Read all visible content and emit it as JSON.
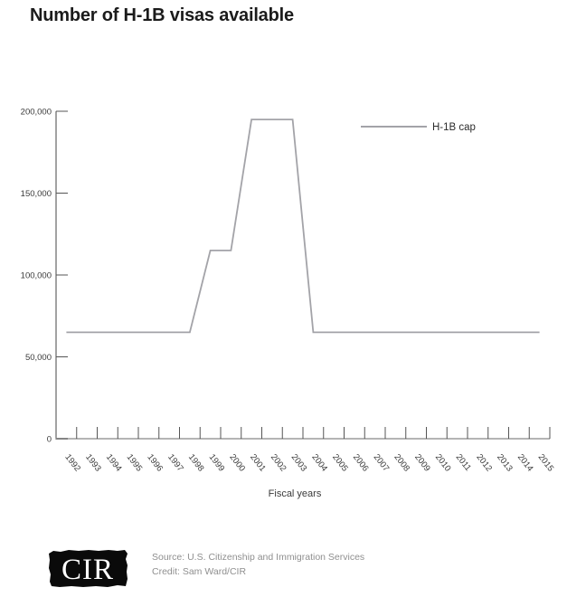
{
  "title": "Number of H-1B visas available",
  "chart_data": {
    "type": "line",
    "title": "Number of H-1B visas available",
    "xlabel": "Fiscal years",
    "ylabel": "",
    "x_categories": [
      "1992",
      "1993",
      "1994",
      "1995",
      "1996",
      "1997",
      "1998",
      "1999",
      "2000",
      "2001",
      "2002",
      "2003",
      "2004",
      "2005",
      "2006",
      "2007",
      "2008",
      "2009",
      "2010",
      "2011",
      "2012",
      "2013",
      "2014",
      "2015"
    ],
    "series": [
      {
        "name": "H-1B cap",
        "color": "#a3a3a8",
        "values": [
          65000,
          65000,
          65000,
          65000,
          65000,
          65000,
          65000,
          115000,
          115000,
          195000,
          195000,
          195000,
          65000,
          65000,
          65000,
          65000,
          65000,
          65000,
          65000,
          65000,
          65000,
          65000,
          65000,
          65000
        ]
      }
    ],
    "ylim": [
      0,
      200000
    ],
    "yticks": [
      {
        "value": 0,
        "label": "0"
      },
      {
        "value": 50000,
        "label": "50,000"
      },
      {
        "value": 100000,
        "label": "100,000"
      },
      {
        "value": 150000,
        "label": "150,000"
      },
      {
        "value": 200000,
        "label": "200,000"
      }
    ],
    "legend": {
      "position": "top-right",
      "items": [
        {
          "label": "H-1B cap",
          "color": "#a3a3a8"
        }
      ]
    },
    "grid": false
  },
  "footer": {
    "logo_text": "CIR",
    "source_line": "Source: U.S. Citizenship and Immigration Services",
    "credit_line": "Credit: Sam Ward/CIR"
  },
  "colors": {
    "line": "#a3a3a8",
    "baseline": "#b4b4b4",
    "y_axis": "#454545",
    "tick": "#555555",
    "tick_label": "#3a3a3a",
    "legend_text": "#2b2b2b",
    "xlabel_text": "#3a3a3a",
    "logo_bg": "#0a0a0a",
    "logo_text": "#ffffff"
  }
}
